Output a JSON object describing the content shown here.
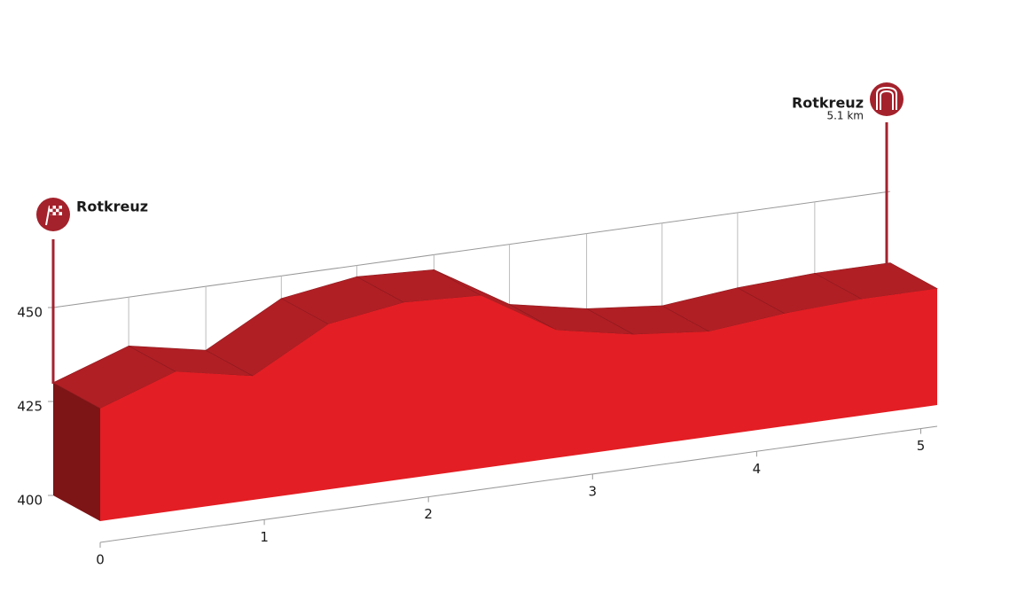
{
  "chart_data": {
    "type": "elevation-profile",
    "x": [
      0,
      0.46,
      0.93,
      1.39,
      1.85,
      2.32,
      2.78,
      3.25,
      3.71,
      4.17,
      4.64,
      5.1
    ],
    "series": [
      {
        "color": "#e31e24",
        "values": [
          430,
          437,
          433,
          444,
          447,
          446,
          434,
          430,
          428,
          430,
          431,
          431
        ]
      }
    ],
    "xlim": [
      0,
      5.1
    ],
    "xticks": [
      0,
      1,
      2,
      3,
      4,
      5
    ],
    "ylim": [
      400,
      450
    ],
    "yticks": [
      400,
      425,
      450
    ],
    "markers": [
      {
        "name": "Rotkreuz"
      },
      {
        "name": "Rotkreuz",
        "distance_label": "5.1 km"
      }
    ]
  }
}
